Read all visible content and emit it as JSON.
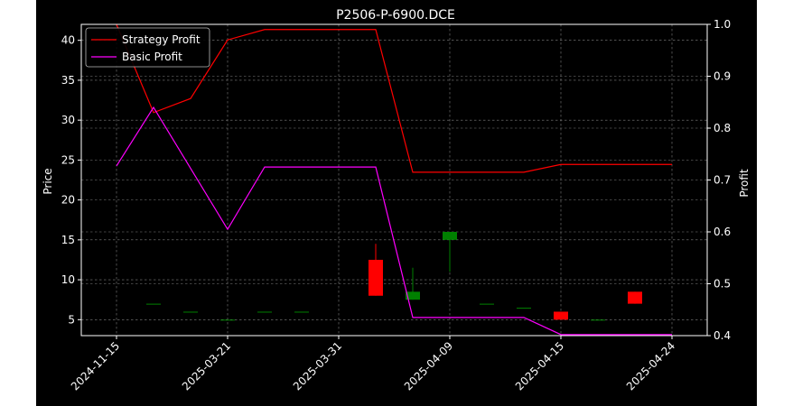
{
  "chart_data": {
    "type": "candlestick+line",
    "title": "P2506-P-6900.DCE",
    "ylabel": "Price",
    "y2label": "Profit",
    "ylim": [
      3.0,
      42.0
    ],
    "y2lim": [
      0.4,
      1.0
    ],
    "yticks": [
      5,
      10,
      15,
      20,
      25,
      30,
      35,
      40
    ],
    "y2ticks": [
      0.4,
      0.5,
      0.6,
      0.7,
      0.8,
      0.9,
      1.0
    ],
    "categories": [
      "2024-11-15",
      "c1",
      "c2",
      "2025-03-21",
      "c4",
      "c5",
      "2025-03-31",
      "c7",
      "c8",
      "2025-04-09",
      "c10",
      "c11",
      "2025-04-15",
      "c13",
      "c14",
      "2025-04-24"
    ],
    "xtick_labels": [
      "2024-11-15",
      "2025-03-21",
      "2025-03-31",
      "2025-04-09",
      "2025-04-15",
      "2025-04-24"
    ],
    "xtick_indices": [
      0,
      3,
      6,
      9,
      12,
      15
    ],
    "candles": [
      {
        "i": 1,
        "open": 7.0,
        "close": 7.0,
        "high": 7.0,
        "low": 7.0
      },
      {
        "i": 2,
        "open": 6.0,
        "close": 6.0,
        "high": 6.0,
        "low": 6.0
      },
      {
        "i": 3,
        "open": 5.0,
        "close": 5.0,
        "high": 5.0,
        "low": 5.0
      },
      {
        "i": 4,
        "open": 6.0,
        "close": 6.0,
        "high": 6.0,
        "low": 6.0
      },
      {
        "i": 5,
        "open": 6.0,
        "close": 6.0,
        "high": 6.0,
        "low": 6.0
      },
      {
        "i": 7,
        "open": 12.5,
        "close": 8.0,
        "high": 14.5,
        "low": 8.0
      },
      {
        "i": 8,
        "open": 7.5,
        "close": 8.5,
        "high": 11.5,
        "low": 7.5
      },
      {
        "i": 9,
        "open": 15.0,
        "close": 16.0,
        "high": 16.0,
        "low": 11.0
      },
      {
        "i": 10,
        "open": 7.0,
        "close": 7.0,
        "high": 7.0,
        "low": 7.0
      },
      {
        "i": 11,
        "open": 6.5,
        "close": 6.5,
        "high": 6.5,
        "low": 6.5
      },
      {
        "i": 12,
        "open": 6.0,
        "close": 5.0,
        "high": 6.0,
        "low": 5.0
      },
      {
        "i": 13,
        "open": 5.0,
        "close": 5.0,
        "high": 5.0,
        "low": 5.0
      },
      {
        "i": 14,
        "open": 8.5,
        "close": 7.0,
        "high": 8.5,
        "low": 7.0
      }
    ],
    "series": [
      {
        "name": "Strategy Profit",
        "color": "#ff0000",
        "axis": "right",
        "values": [
          1.0,
          0.83,
          0.857,
          0.97,
          0.99,
          0.99,
          0.99,
          0.99,
          0.715,
          0.715,
          0.715,
          0.715,
          0.73,
          0.73,
          0.73,
          0.73
        ]
      },
      {
        "name": "Basic Profit",
        "color": "#ff00ff",
        "axis": "right",
        "values": [
          0.727,
          0.84,
          null,
          0.605,
          0.725,
          0.725,
          0.725,
          0.725,
          0.435,
          0.435,
          0.435,
          0.435,
          0.402,
          0.402,
          0.402,
          0.402
        ]
      }
    ],
    "grid": true,
    "legend": "top-left",
    "colors": {
      "up": "#008000",
      "down": "#ff0000",
      "background": "#000000",
      "foreground": "#ffffff",
      "grid": "#808080"
    }
  }
}
